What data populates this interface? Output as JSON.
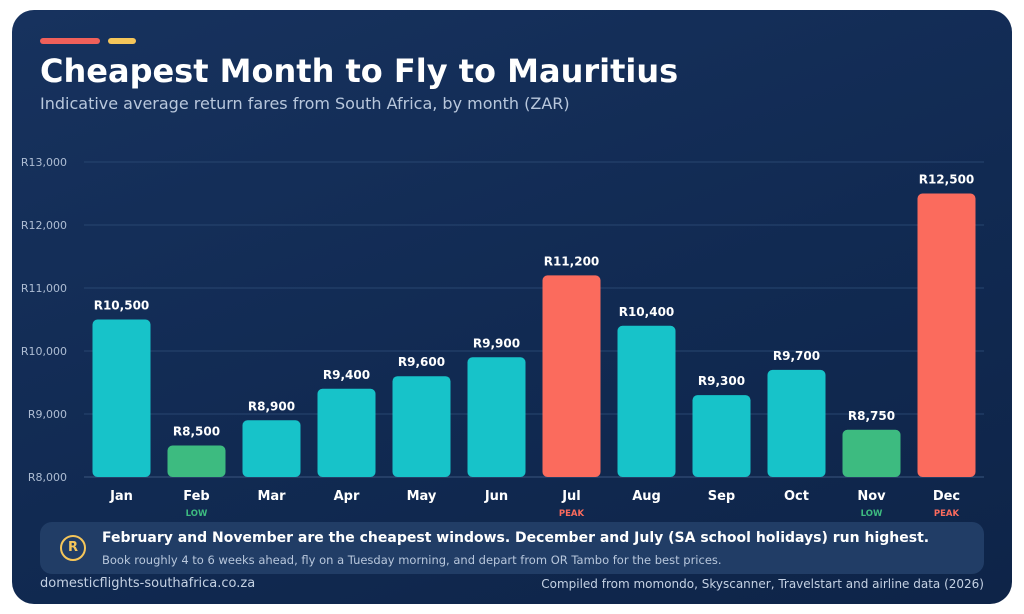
{
  "colors": {
    "normal": "#17c3c9",
    "low": "#3dbb80",
    "peak": "#fb6b5d",
    "accent_red": "#f0605a",
    "accent_yellow": "#f5c65a",
    "low_label": "#3dbb80",
    "peak_label": "#fb6b5d"
  },
  "header": {
    "title": "Cheapest Month to Fly to Mauritius",
    "subtitle": "Indicative average return fares from South Africa, by month (ZAR)"
  },
  "chart_data": {
    "type": "bar",
    "title": "Cheapest Month to Fly to Mauritius",
    "subtitle": "Indicative average return fares from South Africa, by month (ZAR)",
    "xlabel": "",
    "ylabel": "",
    "ylim": [
      8000,
      13000
    ],
    "yticks": [
      8000,
      9000,
      10000,
      11000,
      12000,
      13000
    ],
    "ytick_labels": [
      "R8,000",
      "R9,000",
      "R10,000",
      "R11,000",
      "R12,000",
      "R13,000"
    ],
    "grid": true,
    "categories": [
      "Jan",
      "Feb",
      "Mar",
      "Apr",
      "May",
      "Jun",
      "Jul",
      "Aug",
      "Sep",
      "Oct",
      "Nov",
      "Dec"
    ],
    "values": [
      10500,
      8500,
      8900,
      9400,
      9600,
      9900,
      11200,
      10400,
      9300,
      9700,
      8750,
      12500
    ],
    "value_labels": [
      "R10,500",
      "R8,500",
      "R8,900",
      "R9,400",
      "R9,600",
      "R9,900",
      "R11,200",
      "R10,400",
      "R9,300",
      "R9,700",
      "R8,750",
      "R12,500"
    ],
    "tags": [
      "",
      "LOW",
      "",
      "",
      "",
      "",
      "PEAK",
      "",
      "",
      "",
      "LOW",
      "PEAK"
    ]
  },
  "callout": {
    "icon": "rand-icon",
    "badge_text": "R",
    "main": "February and November are the cheapest windows. December and July (SA school holidays) run highest.",
    "sub": "Book roughly 4 to 6 weeks ahead, fly on a Tuesday morning, and depart from OR Tambo for the best prices."
  },
  "footer": {
    "site": "domesticflights-southafrica.co.za",
    "source": "Compiled from momondo, Skyscanner, Travelstart and airline data (2026)"
  }
}
